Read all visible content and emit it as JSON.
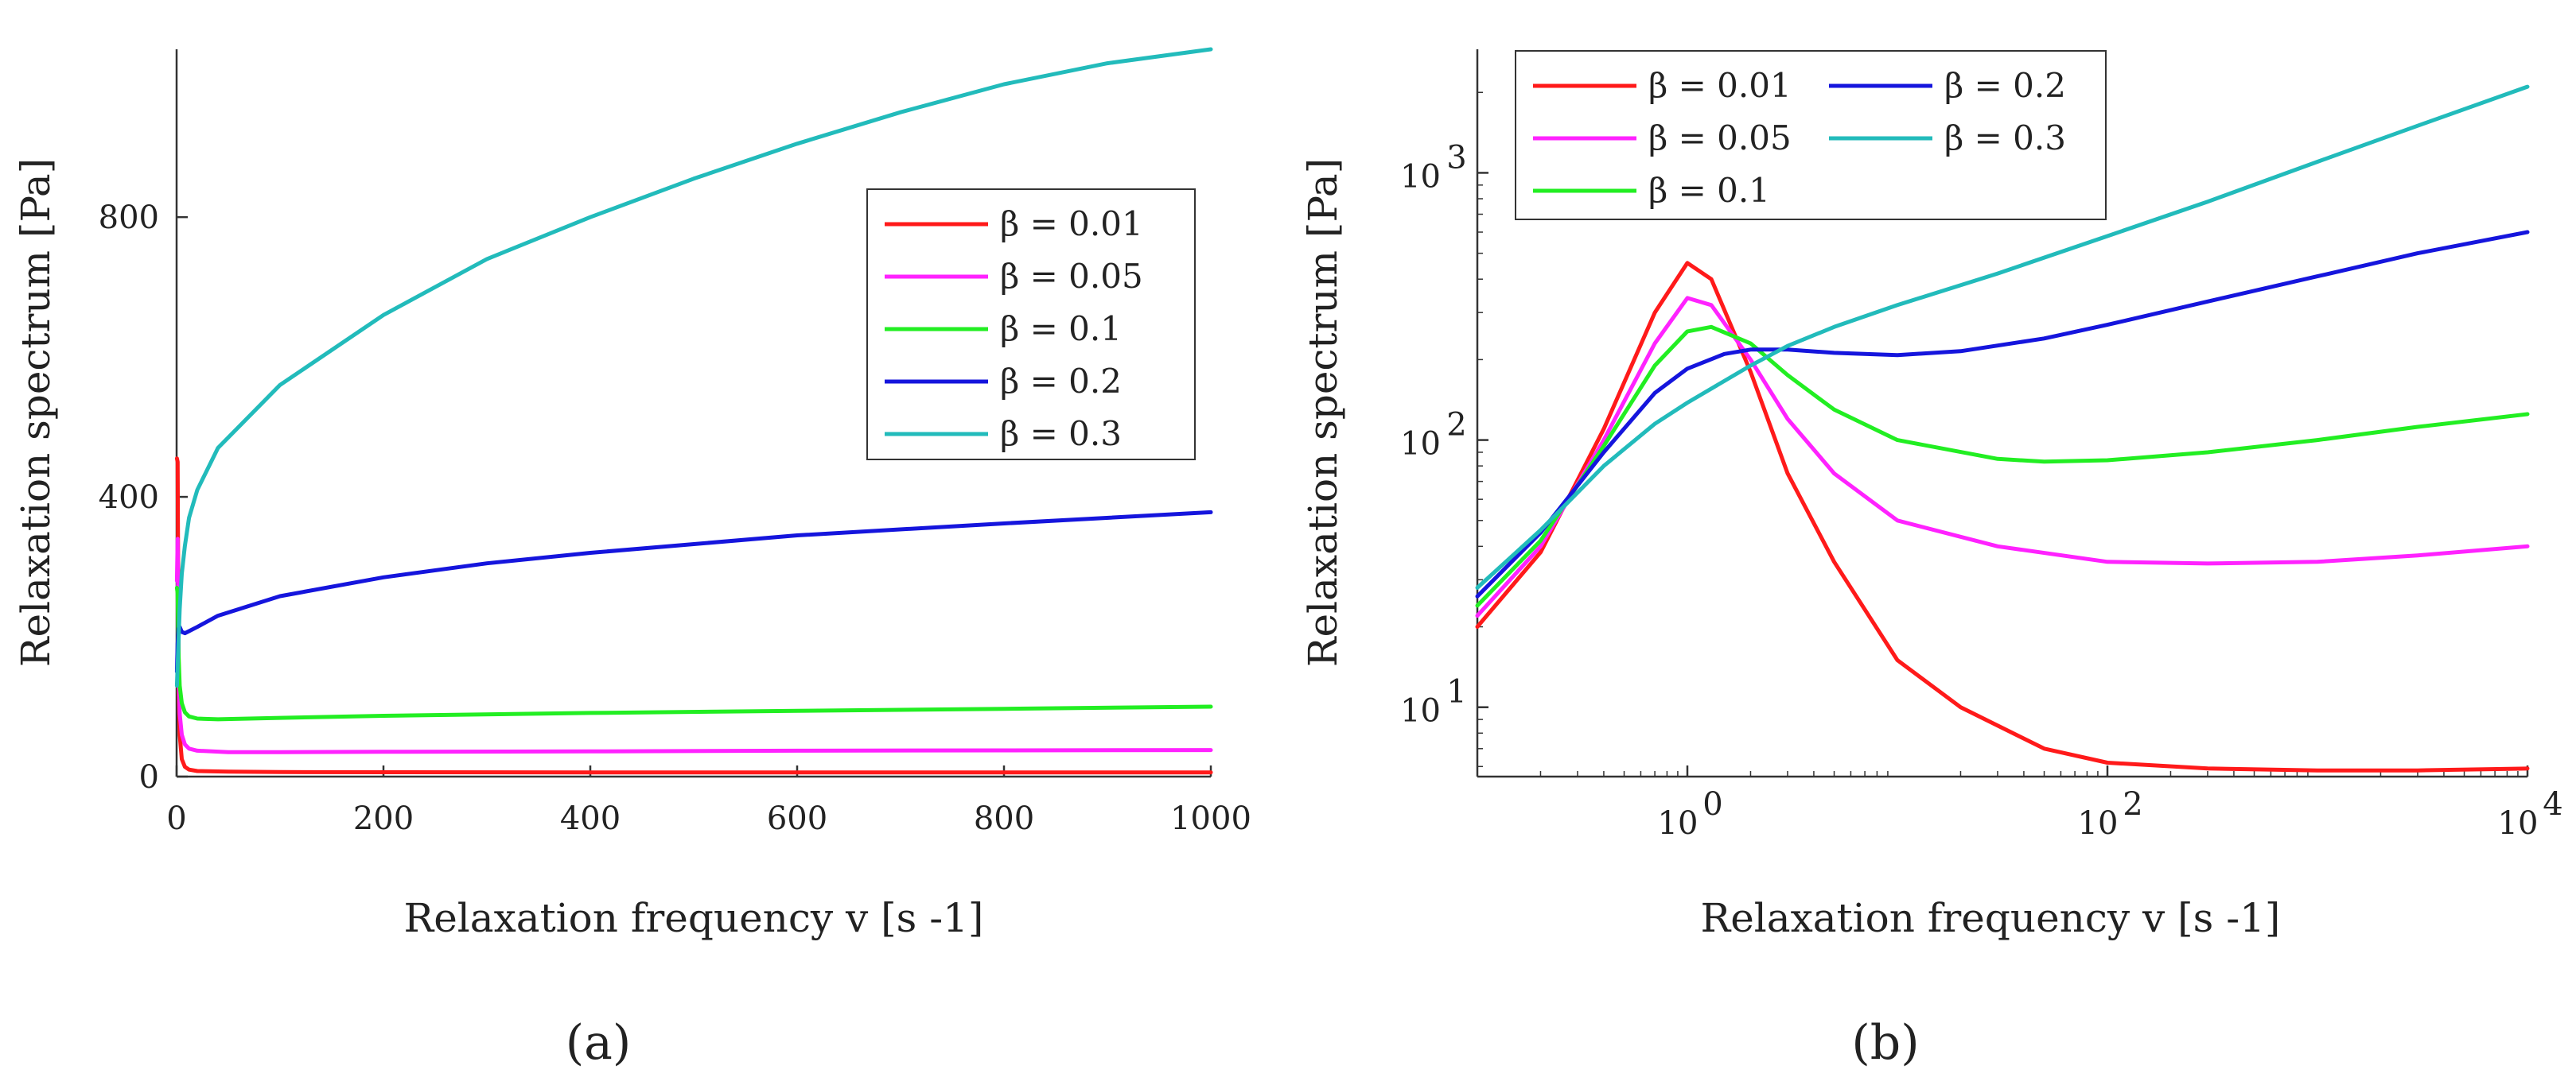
{
  "figure": {
    "panel_a_label": "(a)",
    "panel_b_label": "(b)"
  },
  "chart_data": [
    {
      "id": "a",
      "type": "line",
      "title": "",
      "xlabel": "Relaxation frequency v  [s -1]",
      "ylabel": "Relaxation spectrum  [Pa]",
      "xscale": "linear",
      "yscale": "linear",
      "xlim": [
        0,
        1000
      ],
      "ylim": [
        0,
        1040
      ],
      "xticks": [
        0,
        200,
        400,
        600,
        800,
        1000
      ],
      "yticks": [
        0,
        400,
        800
      ],
      "legend_position": "right",
      "series": [
        {
          "name": "β = 0.01",
          "color": "#ff1a1a",
          "x": [
            0.3,
            1,
            2,
            3,
            5,
            8,
            12,
            20,
            50,
            100,
            200,
            400,
            600,
            800,
            1000
          ],
          "y": [
            455,
            450,
            120,
            60,
            25,
            14,
            10,
            8,
            7,
            6.5,
            6.2,
            6,
            6,
            6,
            6
          ]
        },
        {
          "name": "β = 0.05",
          "color": "#ff22ff",
          "x": [
            0.3,
            1,
            2,
            3,
            5,
            8,
            12,
            20,
            50,
            100,
            200,
            400,
            600,
            800,
            1000
          ],
          "y": [
            280,
            340,
            150,
            90,
            60,
            46,
            40,
            37,
            35,
            35,
            35.5,
            36,
            37,
            37.5,
            38
          ]
        },
        {
          "name": "β = 0.1",
          "color": "#22ee22",
          "x": [
            0.3,
            1,
            2,
            3,
            5,
            8,
            12,
            20,
            40,
            100,
            200,
            400,
            600,
            800,
            1000
          ],
          "y": [
            270,
            262,
            170,
            130,
            105,
            92,
            86,
            83,
            82,
            84,
            87,
            91,
            94,
            97,
            100
          ]
        },
        {
          "name": "β = 0.2",
          "color": "#1515dd",
          "x": [
            0.3,
            1,
            2,
            3,
            5,
            8,
            12,
            20,
            40,
            100,
            200,
            300,
            400,
            600,
            800,
            1000
          ],
          "y": [
            150,
            190,
            212,
            214,
            207,
            205,
            208,
            214,
            230,
            258,
            285,
            305,
            320,
            345,
            362,
            378
          ]
        },
        {
          "name": "β = 0.3",
          "color": "#22bbbb",
          "x": [
            0.3,
            1,
            2,
            3,
            5,
            8,
            12,
            20,
            40,
            100,
            200,
            300,
            400,
            500,
            600,
            700,
            800,
            900,
            1000
          ],
          "y": [
            130,
            160,
            200,
            240,
            290,
            330,
            370,
            410,
            470,
            560,
            660,
            740,
            800,
            855,
            905,
            950,
            990,
            1020,
            1040
          ]
        }
      ]
    },
    {
      "id": "b",
      "type": "line",
      "title": "",
      "xlabel": "Relaxation frequency v  [s -1]",
      "ylabel": "Relaxation spectrum  [Pa]",
      "xscale": "log",
      "yscale": "log",
      "xlim": [
        0.1,
        10000
      ],
      "ylim": [
        5.5,
        2900
      ],
      "xticks": [
        1,
        100,
        10000
      ],
      "xtick_labels": [
        {
          "base": "10",
          "exp": "0"
        },
        {
          "base": "10",
          "exp": "2"
        },
        {
          "base": "10",
          "exp": "4"
        }
      ],
      "yticks": [
        10,
        100,
        1000
      ],
      "ytick_labels": [
        {
          "base": "10",
          "exp": "1"
        },
        {
          "base": "10",
          "exp": "2"
        },
        {
          "base": "10",
          "exp": "3"
        }
      ],
      "legend_position": "top-left",
      "series": [
        {
          "name": "β = 0.01",
          "color": "#ff1a1a",
          "x": [
            0.1,
            0.2,
            0.4,
            0.7,
            1,
            1.3,
            2,
            3,
            5,
            10,
            20,
            50,
            100,
            300,
            1000,
            3000,
            10000
          ],
          "y": [
            20,
            38,
            110,
            300,
            460,
            400,
            180,
            75,
            35,
            15,
            10,
            7,
            6.2,
            5.9,
            5.8,
            5.8,
            5.9
          ]
        },
        {
          "name": "β = 0.05",
          "color": "#ff22ff",
          "x": [
            0.1,
            0.2,
            0.4,
            0.7,
            1,
            1.3,
            2,
            3,
            5,
            10,
            30,
            100,
            300,
            1000,
            3000,
            10000
          ],
          "y": [
            22,
            40,
            100,
            230,
            340,
            320,
            200,
            120,
            75,
            50,
            40,
            35,
            34.5,
            35,
            37,
            40
          ]
        },
        {
          "name": "β = 0.1",
          "color": "#22ee22",
          "x": [
            0.1,
            0.2,
            0.4,
            0.7,
            1,
            1.3,
            2,
            3,
            5,
            10,
            30,
            50,
            100,
            300,
            1000,
            3000,
            10000
          ],
          "y": [
            24,
            42,
            95,
            190,
            255,
            265,
            230,
            175,
            130,
            100,
            85,
            83,
            84,
            90,
            100,
            112,
            125
          ]
        },
        {
          "name": "β = 0.2",
          "color": "#1515dd",
          "x": [
            0.1,
            0.2,
            0.4,
            0.7,
            1,
            1.5,
            2,
            3,
            5,
            10,
            20,
            50,
            100,
            300,
            1000,
            3000,
            10000
          ],
          "y": [
            26,
            45,
            90,
            150,
            185,
            210,
            218,
            218,
            212,
            208,
            215,
            240,
            270,
            330,
            410,
            500,
            600
          ]
        },
        {
          "name": "β = 0.3",
          "color": "#22bbbb",
          "x": [
            0.1,
            0.2,
            0.4,
            0.7,
            1,
            2,
            3,
            5,
            10,
            30,
            100,
            300,
            1000,
            3000,
            10000
          ],
          "y": [
            28,
            46,
            80,
            115,
            138,
            190,
            225,
            265,
            320,
            420,
            580,
            780,
            1100,
            1500,
            2100
          ]
        }
      ]
    }
  ]
}
